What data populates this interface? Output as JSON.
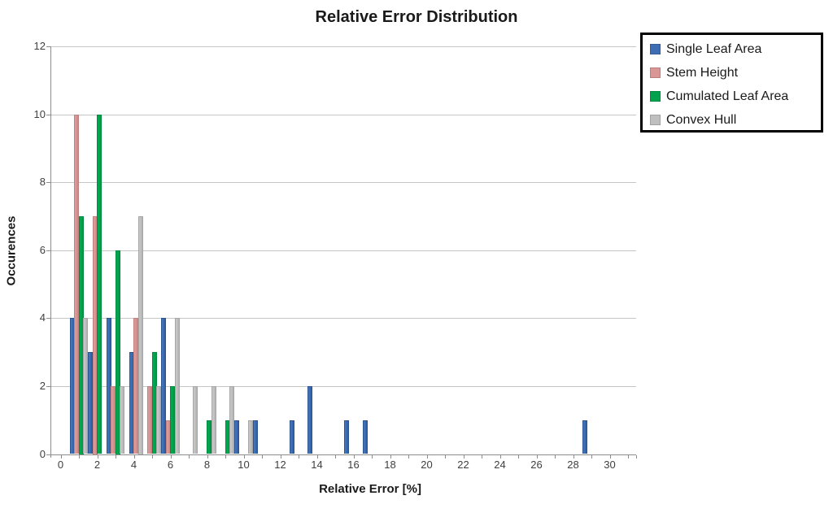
{
  "chart_data": {
    "type": "bar",
    "title": "Relative Error Distribution",
    "xlabel": "Relative Error [%]",
    "ylabel": "Occurences",
    "xlim": [
      0,
      31.5
    ],
    "ylim": [
      0,
      12
    ],
    "x_tick_labels": [
      0,
      2,
      4,
      6,
      8,
      10,
      12,
      14,
      16,
      18,
      20,
      22,
      24,
      26,
      28,
      30
    ],
    "y_tick_labels": [
      0,
      2,
      4,
      6,
      8,
      10,
      12
    ],
    "grid": "horizontal-major",
    "legend_position": "top-right-outside",
    "bin_width": 1,
    "bar_slot_width": 0.25,
    "series": [
      {
        "name": "Single Leaf Area",
        "color": "#3E6DB3",
        "slot": 0,
        "bars": [
          {
            "x": 1,
            "count": 4
          },
          {
            "x": 2,
            "count": 3
          },
          {
            "x": 3,
            "count": 4
          },
          {
            "x": 4,
            "count": 3,
            "xc": 3.875
          },
          {
            "x": 6,
            "count": 4
          },
          {
            "x": 10,
            "count": 1
          },
          {
            "x": 11,
            "count": 1
          },
          {
            "x": 13,
            "count": 1
          },
          {
            "x": 14,
            "count": 2
          },
          {
            "x": 16,
            "count": 1
          },
          {
            "x": 17,
            "count": 1
          },
          {
            "x": 29,
            "count": 1
          }
        ]
      },
      {
        "name": "Stem Height",
        "color": "#D99694",
        "slot": 1,
        "bars": [
          {
            "x": 1,
            "count": 10
          },
          {
            "x": 2,
            "count": 7
          },
          {
            "x": 3,
            "count": 2
          },
          {
            "x": 4,
            "count": 4,
            "xc": 4.125
          },
          {
            "x": 5,
            "count": 2
          },
          {
            "x": 6,
            "count": 1
          }
        ]
      },
      {
        "name": "Cumulated Leaf Area",
        "color": "#00A24E",
        "slot": 2,
        "bars": [
          {
            "x": 1,
            "count": 7
          },
          {
            "x": 2,
            "count": 10
          },
          {
            "x": 3,
            "count": 6
          },
          {
            "x": 5,
            "count": 3
          },
          {
            "x": 6,
            "count": 2
          },
          {
            "x": 8,
            "count": 1
          },
          {
            "x": 9,
            "count": 1
          }
        ]
      },
      {
        "name": "Convex Hull",
        "color": "#BFBFBF",
        "slot": 3,
        "bars": [
          {
            "x": 1,
            "count": 4
          },
          {
            "x": 3,
            "count": 2
          },
          {
            "x": 4,
            "count": 7
          },
          {
            "x": 5,
            "count": 2
          },
          {
            "x": 6,
            "count": 4
          },
          {
            "x": 7,
            "count": 2
          },
          {
            "x": 8,
            "count": 2
          },
          {
            "x": 9,
            "count": 2
          },
          {
            "x": 10,
            "count": 1
          }
        ]
      }
    ]
  }
}
